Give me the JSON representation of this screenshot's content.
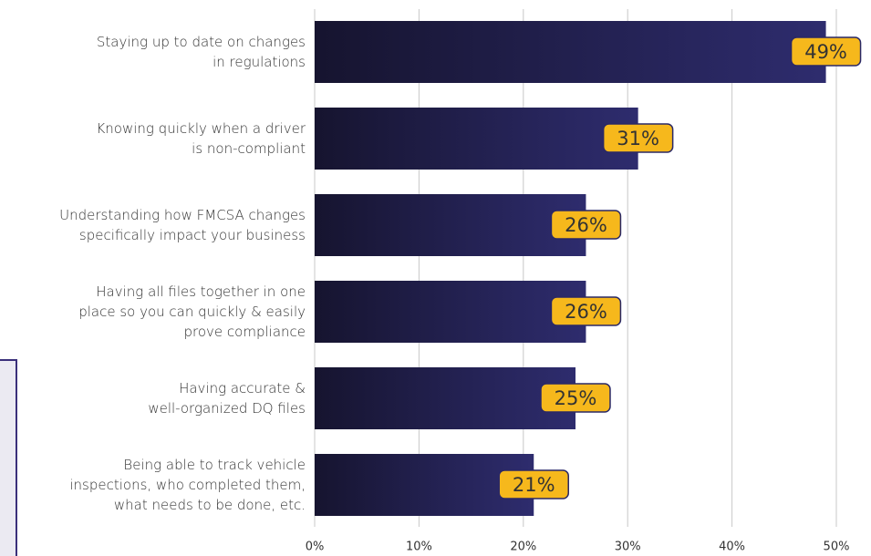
{
  "chart_data": {
    "type": "hbar",
    "categories": [
      "Staying up to date on changes\nin regulations",
      "Knowing quickly when a driver\nis non-compliant",
      "Understanding how FMCSA changes\nspecifically impact your business",
      "Having all files together in one\nplace so you can quickly & easily\nprove compliance",
      "Having accurate &\nwell-organized DQ files",
      "Being able to track vehicle\ninspections, who completed them,\nwhat needs to be done, etc."
    ],
    "values": [
      49,
      31,
      26,
      26,
      25,
      21
    ],
    "value_labels": [
      "49%",
      "31%",
      "26%",
      "26%",
      "25%",
      "21%"
    ],
    "color": "#2a2866",
    "xlim": [
      0,
      50
    ],
    "xticks": [
      {
        "value": 0,
        "label": "0%"
      },
      {
        "value": 10,
        "label": "10%"
      },
      {
        "value": 20,
        "label": "20%"
      },
      {
        "value": 30,
        "label": "30%"
      },
      {
        "value": 40,
        "label": "40%"
      },
      {
        "value": 50,
        "label": "50%"
      }
    ],
    "grid": true
  }
}
